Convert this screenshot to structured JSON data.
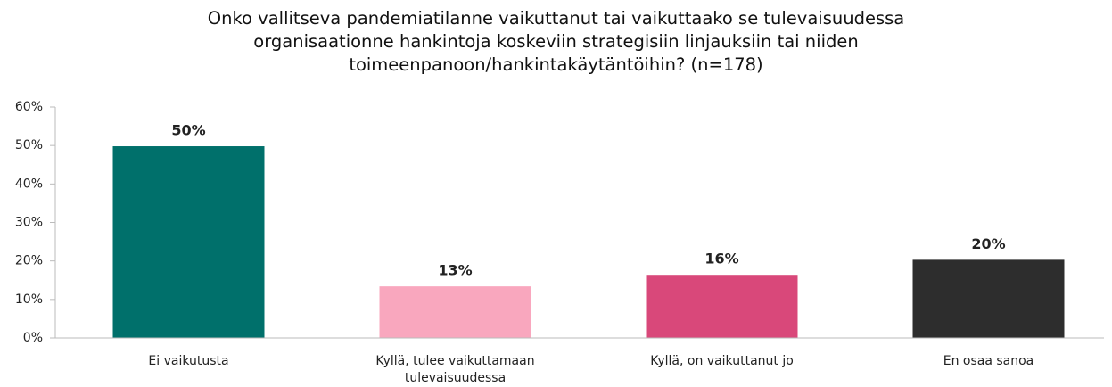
{
  "chart_data": {
    "type": "bar",
    "title": "Onko vallitseva pandemiatilanne vaikuttanut tai vaikuttaako se tulevaisuudessa organisaationne hankintoja koskeviin strategisiin linjauksiin tai niiden toimeenpanoon/hankintakäytäntöihin? (n=178)",
    "categories": [
      "Ei vaikutusta",
      "Kyllä, tulee vaikuttamaan tulevaisuudessa",
      "Kyllä, on vaikuttanut jo",
      "En osaa sanoa"
    ],
    "values": [
      49.8,
      13.4,
      16.4,
      20.3
    ],
    "value_labels": [
      "50%",
      "13%",
      "16%",
      "20%"
    ],
    "colors": [
      "#00706b",
      "#f9a7be",
      "#d9487a",
      "#2d2d2d"
    ],
    "ylim": [
      0,
      60
    ],
    "yticks": [
      {
        "value": 0,
        "label": "0%"
      },
      {
        "value": 10,
        "label": "10%"
      },
      {
        "value": 20,
        "label": "20%"
      },
      {
        "value": 30,
        "label": "30%"
      },
      {
        "value": 40,
        "label": "40%"
      },
      {
        "value": 50,
        "label": "50%"
      },
      {
        "value": 60,
        "label": "60%"
      }
    ],
    "grid": false
  }
}
